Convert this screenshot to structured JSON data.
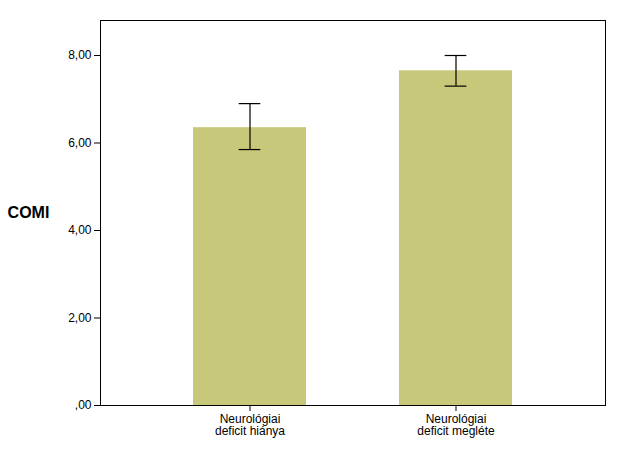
{
  "chart_data": {
    "type": "bar",
    "categories": [
      "Neurológiai\ndeficit hiánya",
      "Neurológiai\ndeficit megléte"
    ],
    "values": [
      6.35,
      7.65
    ],
    "errors_up": [
      0.55,
      0.35
    ],
    "errors_down": [
      0.5,
      0.35
    ],
    "color": "#c8c87a",
    "ylabel": "COMI",
    "ylim": [
      0.0,
      8.8
    ],
    "yticks": [
      {
        "value": 0,
        "label": ",00"
      },
      {
        "value": 2,
        "label": "2,00"
      },
      {
        "value": 4,
        "label": "4,00"
      },
      {
        "value": 6,
        "label": "6,00"
      },
      {
        "value": 8,
        "label": "8,00"
      }
    ],
    "grid": false
  }
}
